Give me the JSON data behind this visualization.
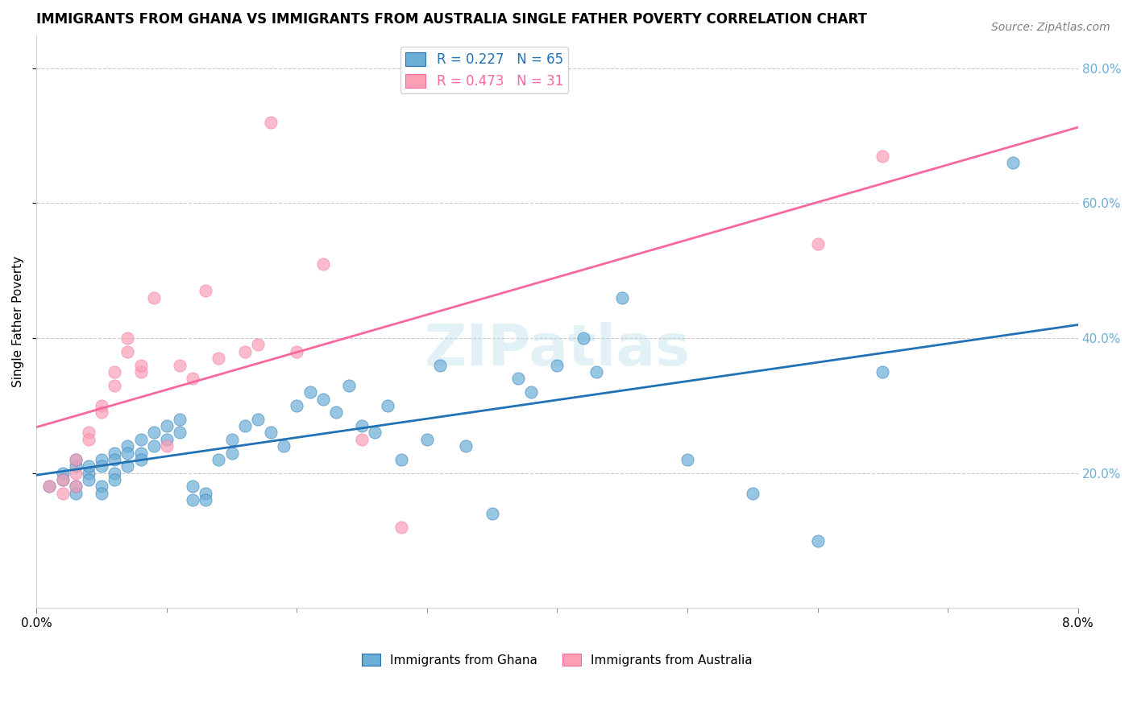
{
  "title": "IMMIGRANTS FROM GHANA VS IMMIGRANTS FROM AUSTRALIA SINGLE FATHER POVERTY CORRELATION CHART",
  "source": "Source: ZipAtlas.com",
  "ylabel": "Single Father Poverty",
  "watermark": "ZIPatlas",
  "legend_blue_r": "0.227",
  "legend_blue_n": "65",
  "legend_pink_r": "0.473",
  "legend_pink_n": "31",
  "legend_blue_label": "Immigrants from Ghana",
  "legend_pink_label": "Immigrants from Australia",
  "blue_color": "#6baed6",
  "pink_color": "#fa9fb5",
  "blue_line_color": "#2171b5",
  "pink_line_color": "#f768a1",
  "background_color": "#ffffff",
  "grid_color": "#cccccc",
  "right_axis_color": "#6baed6",
  "ghana_x": [
    0.001,
    0.002,
    0.002,
    0.003,
    0.003,
    0.003,
    0.003,
    0.004,
    0.004,
    0.004,
    0.005,
    0.005,
    0.005,
    0.005,
    0.006,
    0.006,
    0.006,
    0.006,
    0.007,
    0.007,
    0.007,
    0.008,
    0.008,
    0.008,
    0.009,
    0.009,
    0.01,
    0.01,
    0.011,
    0.011,
    0.012,
    0.012,
    0.013,
    0.013,
    0.014,
    0.015,
    0.015,
    0.016,
    0.017,
    0.018,
    0.019,
    0.02,
    0.021,
    0.022,
    0.023,
    0.024,
    0.025,
    0.026,
    0.027,
    0.028,
    0.03,
    0.031,
    0.033,
    0.035,
    0.037,
    0.038,
    0.04,
    0.042,
    0.043,
    0.045,
    0.05,
    0.055,
    0.06,
    0.065,
    0.075
  ],
  "ghana_y": [
    0.18,
    0.2,
    0.19,
    0.21,
    0.22,
    0.18,
    0.17,
    0.2,
    0.21,
    0.19,
    0.22,
    0.21,
    0.18,
    0.17,
    0.23,
    0.22,
    0.2,
    0.19,
    0.24,
    0.23,
    0.21,
    0.25,
    0.23,
    0.22,
    0.26,
    0.24,
    0.27,
    0.25,
    0.28,
    0.26,
    0.16,
    0.18,
    0.17,
    0.16,
    0.22,
    0.25,
    0.23,
    0.27,
    0.28,
    0.26,
    0.24,
    0.3,
    0.32,
    0.31,
    0.29,
    0.33,
    0.27,
    0.26,
    0.3,
    0.22,
    0.25,
    0.36,
    0.24,
    0.14,
    0.34,
    0.32,
    0.36,
    0.4,
    0.35,
    0.46,
    0.22,
    0.17,
    0.1,
    0.35,
    0.66
  ],
  "australia_x": [
    0.001,
    0.002,
    0.002,
    0.003,
    0.003,
    0.003,
    0.004,
    0.004,
    0.005,
    0.005,
    0.006,
    0.006,
    0.007,
    0.007,
    0.008,
    0.008,
    0.009,
    0.01,
    0.011,
    0.012,
    0.013,
    0.014,
    0.016,
    0.017,
    0.018,
    0.02,
    0.022,
    0.025,
    0.028,
    0.06,
    0.065
  ],
  "australia_y": [
    0.18,
    0.19,
    0.17,
    0.2,
    0.22,
    0.18,
    0.26,
    0.25,
    0.3,
    0.29,
    0.33,
    0.35,
    0.4,
    0.38,
    0.35,
    0.36,
    0.46,
    0.24,
    0.36,
    0.34,
    0.47,
    0.37,
    0.38,
    0.39,
    0.72,
    0.38,
    0.51,
    0.25,
    0.12,
    0.54,
    0.67
  ],
  "xmin": 0.0,
  "xmax": 0.08,
  "ymin": 0.0,
  "ymax": 0.85
}
